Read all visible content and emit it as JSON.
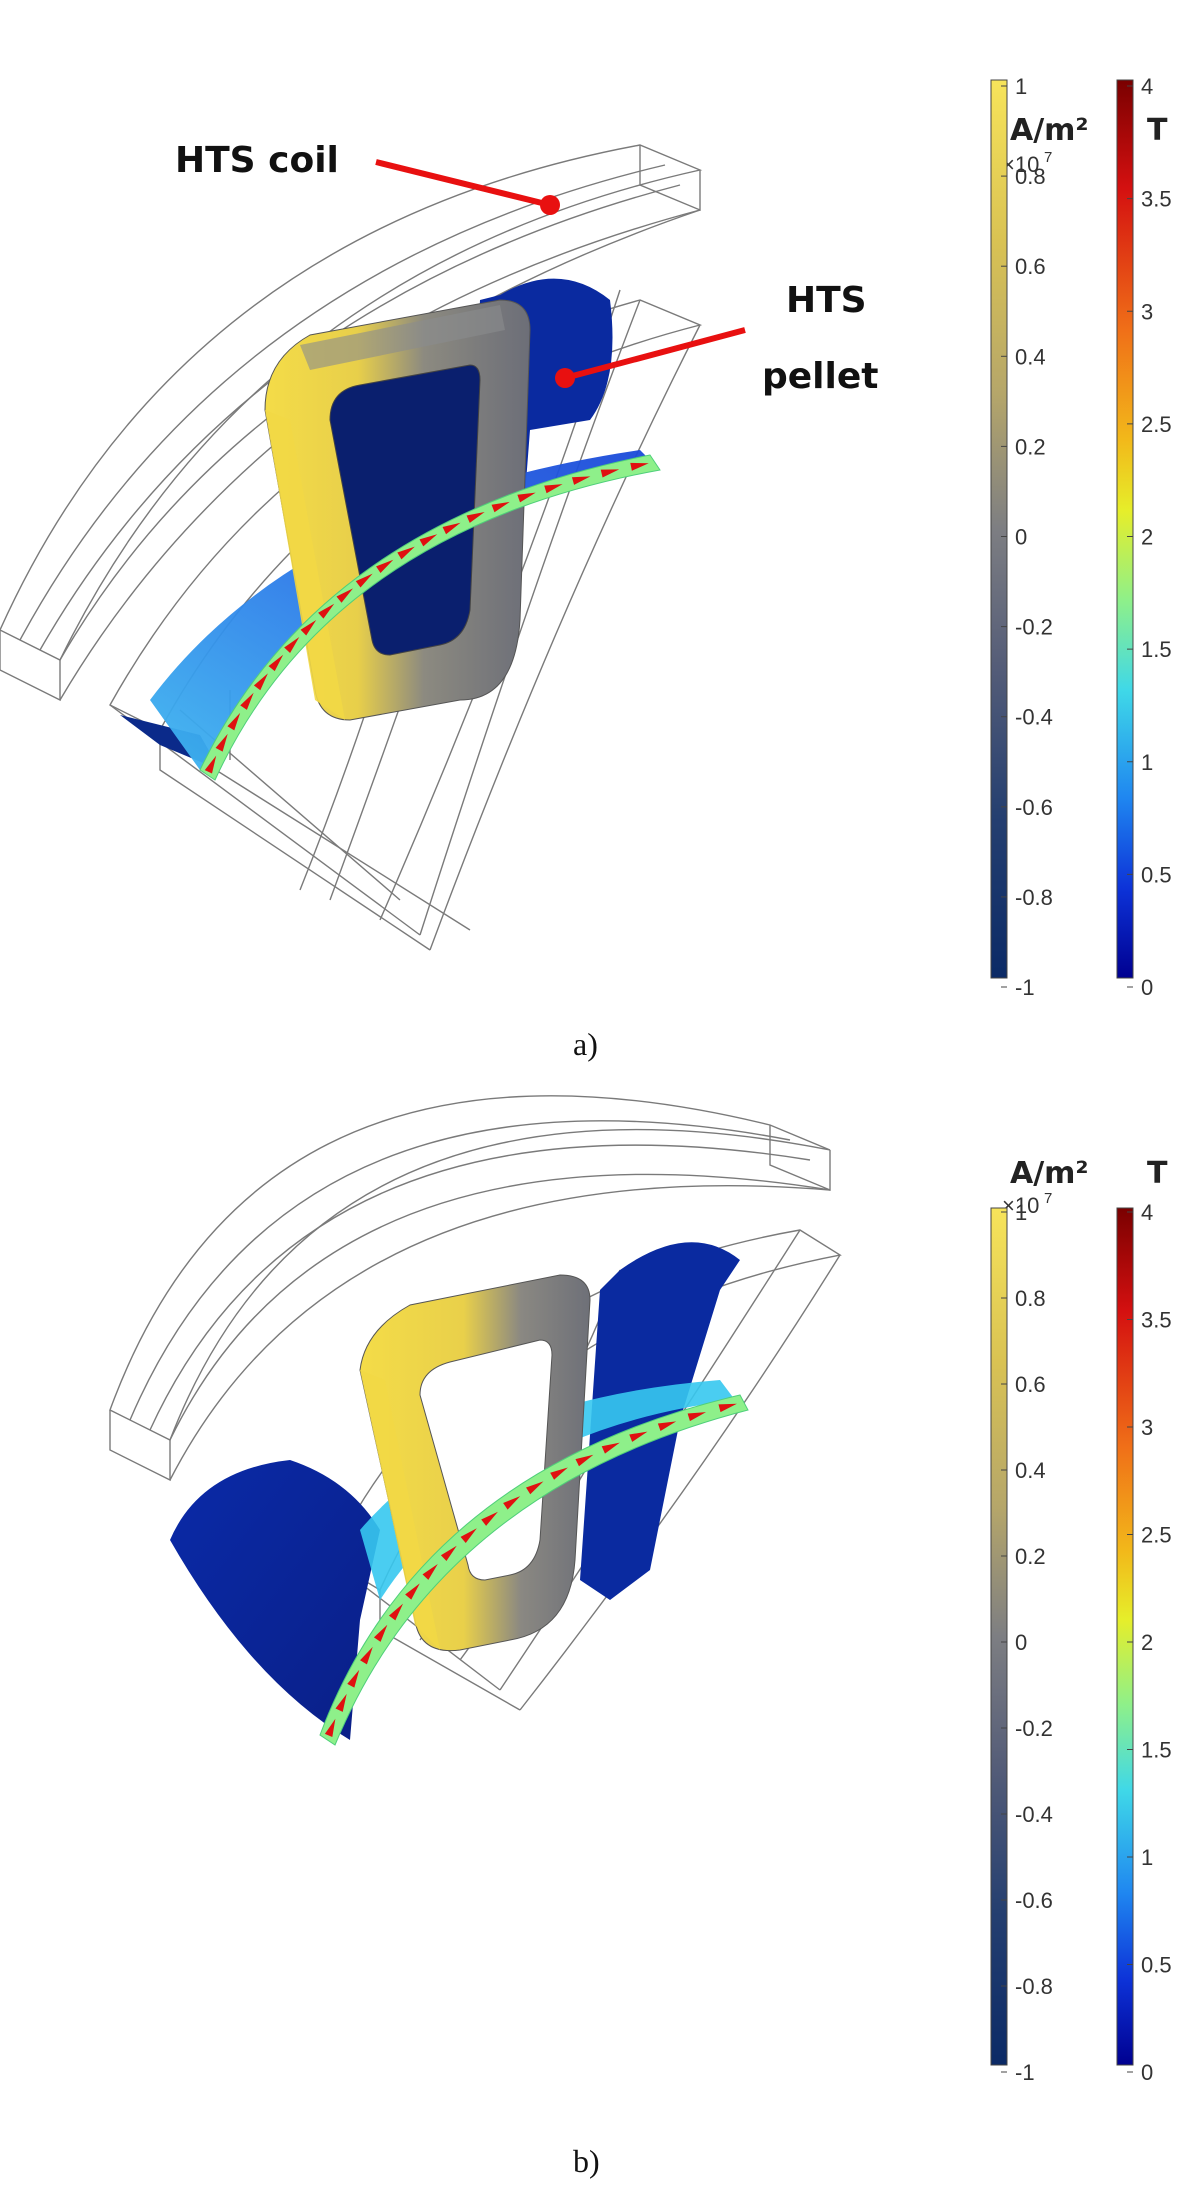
{
  "figure": {
    "panels": [
      {
        "label": "a)",
        "annotations": [
          {
            "text": "HTS coil"
          },
          {
            "text": "HTS"
          },
          {
            "text": "pellet"
          }
        ],
        "colorbars": [
          {
            "unit": "A/m²",
            "multiplier": "×10",
            "multiplier_exp": "7",
            "ticks": [
              "1",
              "0.8",
              "0.6",
              "0.4",
              "0.2",
              "0",
              "-0.2",
              "-0.4",
              "-0.6",
              "-0.8",
              "-1"
            ],
            "colors": [
              "#f7e45a",
              "#e0c84a",
              "#b8a766",
              "#8e8c82",
              "#6f7078",
              "#4a5578",
              "#1f3a6e",
              "#0b2a66"
            ]
          },
          {
            "unit": "T",
            "ticks": [
              "4",
              "3.5",
              "3",
              "2.5",
              "2",
              "1.5",
              "1",
              "0.5",
              "0"
            ],
            "colors": [
              "#7a0000",
              "#d41010",
              "#f07018",
              "#f2b81a",
              "#e6ee2a",
              "#8ef08a",
              "#3fd8e8",
              "#1f86f0",
              "#0d33d8",
              "#000090"
            ]
          }
        ]
      },
      {
        "label": "b)",
        "colorbars": [
          {
            "unit": "A/m²",
            "multiplier": "×10",
            "multiplier_exp": "7",
            "ticks": [
              "1",
              "0.8",
              "0.6",
              "0.4",
              "0.2",
              "0",
              "-0.2",
              "-0.4",
              "-0.6",
              "-0.8",
              "-1"
            ]
          },
          {
            "unit": "T",
            "ticks": [
              "4",
              "3.5",
              "3",
              "2.5",
              "2",
              "1.5",
              "1",
              "0.5",
              "0"
            ]
          }
        ]
      }
    ],
    "colors": {
      "coil_yellow": "#f2d845",
      "coil_gray": "#7a7c84",
      "pellet_blue": "#0a2fa8",
      "field_green": "#8ef08a",
      "field_cyan": "#36c8f0",
      "arrow_red": "#e01010",
      "leader_red": "#e81010"
    }
  }
}
